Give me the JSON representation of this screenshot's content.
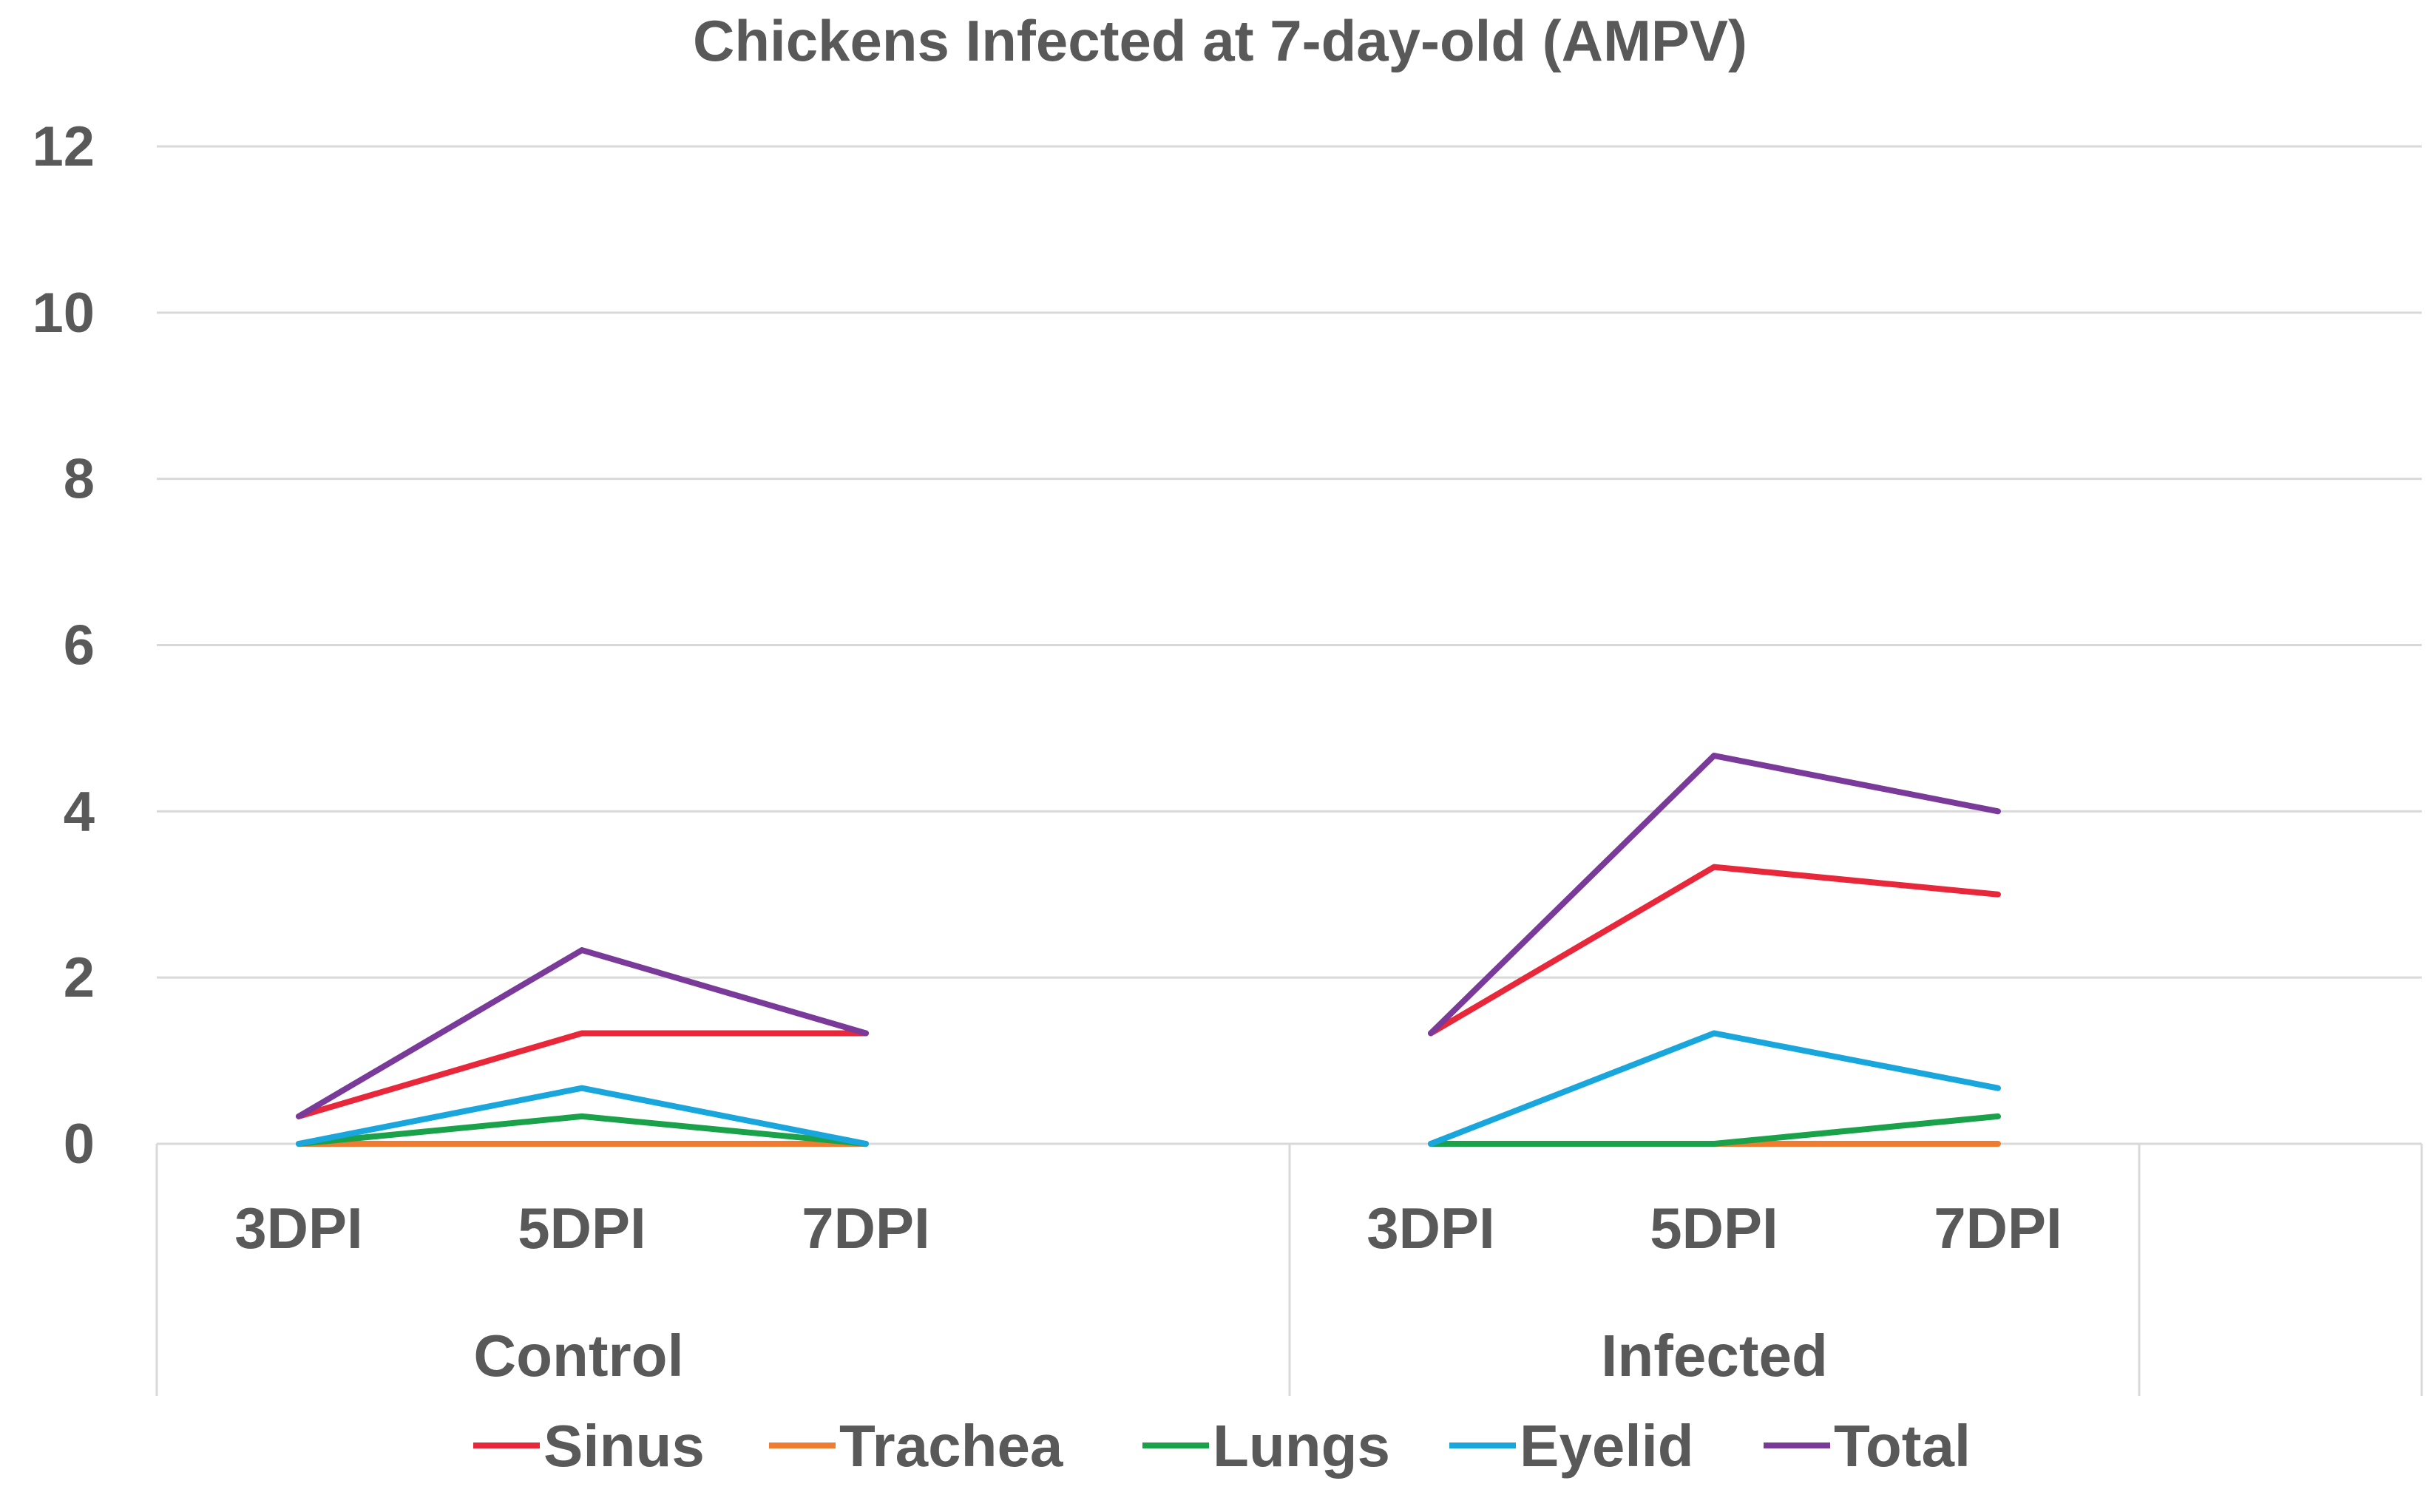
{
  "chart_data": {
    "type": "line",
    "title": "Chickens Infected at 7-day-old (AMPV)",
    "xlabel": "",
    "ylabel": "",
    "ylim": [
      0,
      12
    ],
    "y_ticks": [
      0,
      2,
      4,
      6,
      8,
      10,
      12
    ],
    "grid": true,
    "legend_position": "bottom",
    "groups": [
      {
        "name": "Control",
        "categories": [
          "3DPI",
          "5DPI",
          "7DPI"
        ]
      },
      {
        "name": "Infected",
        "categories": [
          "3DPI",
          "5DPI",
          "7DPI"
        ]
      }
    ],
    "categories": [
      "3DPI",
      "5DPI",
      "7DPI",
      "3DPI",
      "5DPI",
      "7DPI"
    ],
    "series": [
      {
        "name": "Sinus",
        "color": "#e8283a",
        "values": [
          [
            0.33,
            1.33,
            1.33
          ],
          [
            1.33,
            3.33,
            3.0
          ]
        ]
      },
      {
        "name": "Trachea",
        "color": "#f07c32",
        "values": [
          [
            0,
            0,
            0
          ],
          [
            0,
            0,
            0
          ]
        ]
      },
      {
        "name": "Lungs",
        "color": "#1aa24a",
        "values": [
          [
            0,
            0.33,
            0
          ],
          [
            0,
            0,
            0.33
          ]
        ]
      },
      {
        "name": "Eyelid",
        "color": "#18a6dc",
        "values": [
          [
            0,
            0.67,
            0
          ],
          [
            0,
            1.33,
            0.67
          ]
        ]
      },
      {
        "name": "Total",
        "color": "#7a3a9a",
        "values": [
          [
            0.33,
            2.33,
            1.33
          ],
          [
            1.33,
            4.67,
            4.0
          ]
        ]
      }
    ]
  }
}
